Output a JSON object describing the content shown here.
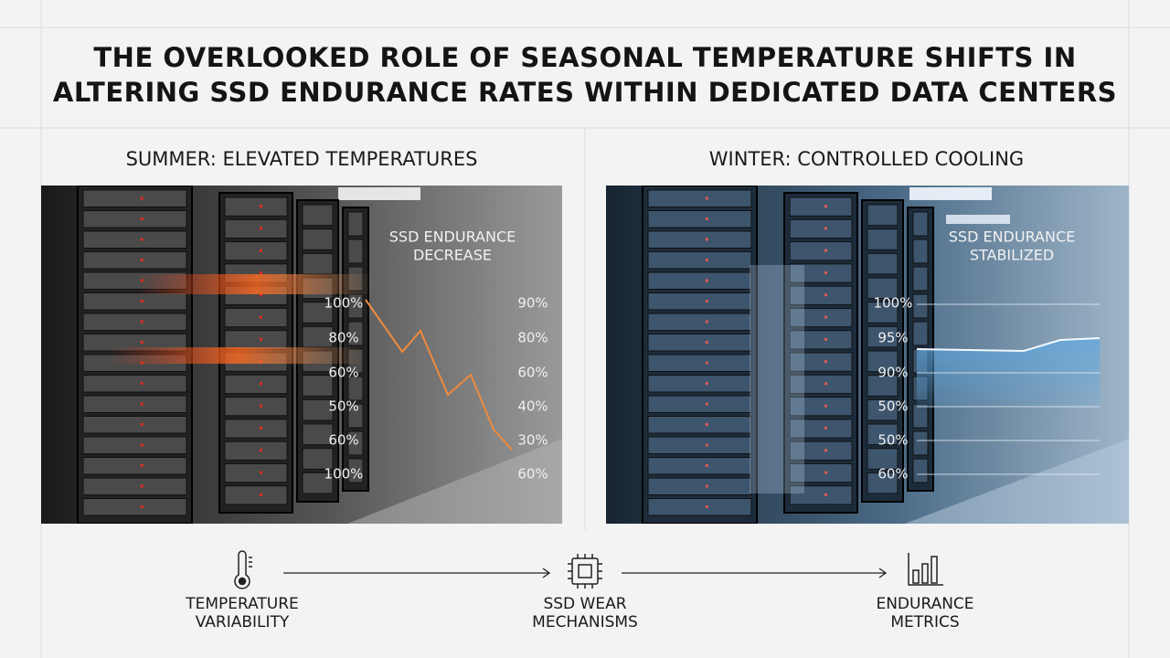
{
  "header": {
    "title_lines": [
      "THE OVERLOOKED ROLE OF SEASONAL TEMPERATURE SHIFTS IN",
      "ALTERING SSD ENDURANCE RATES WITHIN DEDICATED DATA CENTERS"
    ]
  },
  "panels": [
    {
      "heading": "SUMMER: ELEVATED TEMPERATURES",
      "overlay_title": [
        "SSD ENDURANCE",
        "DECREASE"
      ],
      "left_labels": [
        "100%",
        "80%",
        "60%",
        "50%",
        "60%",
        "100%"
      ],
      "right_labels": [
        "90%",
        "80%",
        "60%",
        "40%",
        "30%",
        "60%"
      ]
    },
    {
      "heading": "WINTER: CONTROLLED COOLING",
      "overlay_title": [
        "SSD ENDURANCE",
        "STABILIZED"
      ],
      "left_labels": [
        "100%",
        "95%",
        "90%",
        "50%",
        "50%",
        "60%"
      ]
    }
  ],
  "flow": [
    {
      "label": [
        "TEMPERATURE",
        "VARIABILITY"
      ]
    },
    {
      "label": [
        "SSD WEAR",
        "MECHANISMS"
      ]
    },
    {
      "label": [
        "ENDURANCE",
        "METRICS"
      ]
    }
  ]
}
